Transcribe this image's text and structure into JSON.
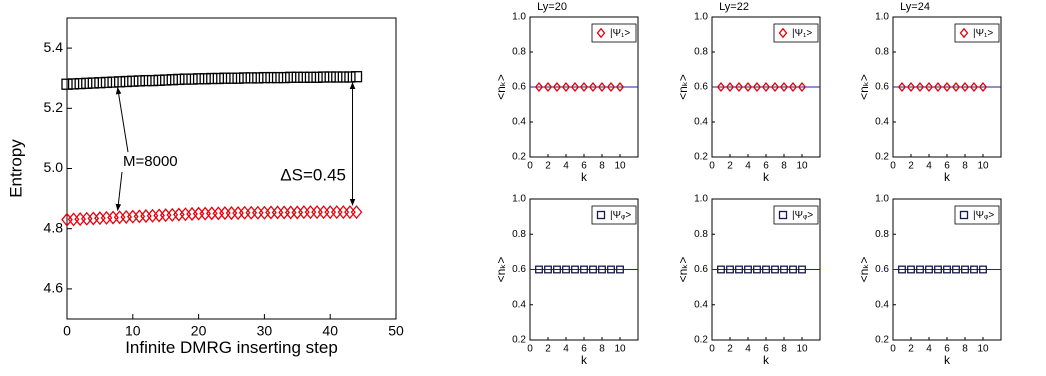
{
  "chart_data": [
    {
      "type": "scatter",
      "xlabel": "Infinite DMRG inserting step",
      "ylabel": "Entropy",
      "xlim": [
        0,
        50
      ],
      "xticks": [
        0,
        10,
        20,
        30,
        40,
        50
      ],
      "ylim": [
        4.5,
        5.5
      ],
      "yticks": [
        4.6,
        4.8,
        {
          "value": 5,
          "label": "5.0"
        },
        5.2,
        5.4
      ],
      "x": [
        0,
        1,
        2,
        3,
        4,
        5,
        6,
        7,
        8,
        9,
        10,
        11,
        12,
        13,
        14,
        15,
        16,
        17,
        18,
        19,
        20,
        21,
        22,
        23,
        24,
        25,
        26,
        27,
        28,
        29,
        30,
        31,
        32,
        33,
        34,
        35,
        36,
        37,
        38,
        39,
        40,
        41,
        42,
        43,
        44
      ],
      "series": [
        {
          "marker": "square",
          "color": "#000000",
          "values": [
            5.28,
            5.281,
            5.282,
            5.283,
            5.284,
            5.285,
            5.286,
            5.287,
            5.288,
            5.289,
            5.29,
            5.291,
            5.292,
            5.292,
            5.293,
            5.294,
            5.295,
            5.296,
            5.297,
            5.297,
            5.298,
            5.298,
            5.299,
            5.299,
            5.3,
            5.3,
            5.3,
            5.301,
            5.301,
            5.301,
            5.302,
            5.302,
            5.302,
            5.302,
            5.303,
            5.303,
            5.303,
            5.303,
            5.303,
            5.304,
            5.304,
            5.304,
            5.304,
            5.304,
            5.305
          ]
        },
        {
          "marker": "diamond",
          "color": "#e8000b",
          "values": [
            4.83,
            4.831,
            4.832,
            4.833,
            4.834,
            4.835,
            4.836,
            4.837,
            4.838,
            4.839,
            4.84,
            4.841,
            4.842,
            4.843,
            4.844,
            4.845,
            4.846,
            4.847,
            4.848,
            4.849,
            4.85,
            4.85,
            4.851,
            4.851,
            4.852,
            4.852,
            4.852,
            4.853,
            4.853,
            4.853,
            4.853,
            4.854,
            4.854,
            4.854,
            4.854,
            4.854,
            4.855,
            4.855,
            4.855,
            4.855,
            4.855,
            4.855,
            4.855,
            4.855,
            4.855
          ]
        }
      ],
      "annotations": [
        "M=8000",
        "ΔS=0.45"
      ]
    },
    {
      "type": "scatter",
      "title": "Ly=20",
      "xlabel": "k",
      "ylabel": "<nₖ>",
      "xlim": [
        0,
        12
      ],
      "xticks": [
        0,
        2,
        4,
        6,
        8,
        10
      ],
      "ylim": [
        0.2,
        1.0
      ],
      "yticks": [
        0.2,
        0.4,
        0.6,
        0.8,
        {
          "value": 1,
          "label": "1.0"
        }
      ],
      "reference_line": 0.6,
      "reference_color": "#1f1fa0",
      "x": [
        1,
        2,
        3,
        4,
        5,
        6,
        7,
        8,
        9,
        10
      ],
      "series": [
        {
          "name": "|Ψ₁>",
          "marker": "diamond",
          "color": "#e8000b",
          "values": [
            0.6,
            0.6,
            0.6,
            0.6,
            0.6,
            0.6,
            0.6,
            0.6,
            0.6,
            0.6
          ]
        }
      ]
    },
    {
      "type": "scatter",
      "title": "Ly=22",
      "xlabel": "k",
      "ylabel": "<nₖ>",
      "xlim": [
        0,
        12
      ],
      "xticks": [
        0,
        2,
        4,
        6,
        8,
        10
      ],
      "ylim": [
        0.2,
        1.0
      ],
      "yticks": [
        0.2,
        0.4,
        0.6,
        0.8,
        {
          "value": 1,
          "label": "1.0"
        }
      ],
      "reference_line": 0.6,
      "reference_color": "#1f1fa0",
      "x": [
        1,
        2,
        3,
        4,
        5,
        6,
        7,
        8,
        9,
        10
      ],
      "series": [
        {
          "name": "|Ψ₁>",
          "marker": "diamond",
          "color": "#e8000b",
          "values": [
            0.6,
            0.6,
            0.6,
            0.6,
            0.6,
            0.6,
            0.6,
            0.6,
            0.6,
            0.6
          ]
        }
      ]
    },
    {
      "type": "scatter",
      "title": "Ly=24",
      "xlabel": "k",
      "ylabel": "<nₖ>",
      "xlim": [
        0,
        12
      ],
      "xticks": [
        0,
        2,
        4,
        6,
        8,
        10
      ],
      "ylim": [
        0.2,
        1.0
      ],
      "yticks": [
        0.2,
        0.4,
        0.6,
        0.8,
        {
          "value": 1,
          "label": "1.0"
        }
      ],
      "reference_line": 0.6,
      "reference_color": "#1f1fa0",
      "x": [
        1,
        2,
        3,
        4,
        5,
        6,
        7,
        8,
        9,
        10
      ],
      "series": [
        {
          "name": "|Ψ₁>",
          "marker": "diamond",
          "color": "#e8000b",
          "values": [
            0.6,
            0.6,
            0.6,
            0.6,
            0.6,
            0.6,
            0.6,
            0.6,
            0.6,
            0.6
          ]
        }
      ]
    },
    {
      "type": "scatter",
      "xlabel": "k",
      "ylabel": "<nₖ>",
      "xlim": [
        0,
        12
      ],
      "xticks": [
        0,
        2,
        4,
        6,
        8,
        10
      ],
      "ylim": [
        0.2,
        1.0
      ],
      "yticks": [
        0.2,
        0.4,
        0.6,
        0.8,
        {
          "value": 1,
          "label": "1.0"
        }
      ],
      "reference_line": 0.6,
      "reference_color": "#1f1fa0",
      "x": [
        1,
        2,
        3,
        4,
        5,
        6,
        7,
        8,
        9,
        10
      ],
      "series": [
        {
          "name": "|Ψᵩ>",
          "marker": "square",
          "color": "#1a1a50",
          "values": [
            0.6,
            0.6,
            0.6,
            0.6,
            0.6,
            0.6,
            0.6,
            0.6,
            0.6,
            0.6
          ]
        }
      ]
    },
    {
      "type": "scatter",
      "xlabel": "k",
      "ylabel": "<nₖ>",
      "xlim": [
        0,
        12
      ],
      "xticks": [
        0,
        2,
        4,
        6,
        8,
        10
      ],
      "ylim": [
        0.2,
        1.0
      ],
      "yticks": [
        0.2,
        0.4,
        0.6,
        0.8,
        {
          "value": 1,
          "label": "1.0"
        }
      ],
      "reference_line": 0.6,
      "reference_color": "#1f1fa0",
      "x": [
        1,
        2,
        3,
        4,
        5,
        6,
        7,
        8,
        9,
        10
      ],
      "series": [
        {
          "name": "|Ψᵩ>",
          "marker": "square",
          "color": "#1a1a50",
          "values": [
            0.6,
            0.6,
            0.6,
            0.6,
            0.6,
            0.6,
            0.6,
            0.6,
            0.6,
            0.6
          ]
        }
      ]
    },
    {
      "type": "scatter",
      "xlabel": "k",
      "ylabel": "<nₖ>",
      "xlim": [
        0,
        12
      ],
      "xticks": [
        0,
        2,
        4,
        6,
        8,
        10
      ],
      "ylim": [
        0.2,
        1.0
      ],
      "yticks": [
        0.2,
        0.4,
        0.6,
        0.8,
        {
          "value": 1,
          "label": "1.0"
        }
      ],
      "reference_line": 0.6,
      "reference_color": "#1f1fa0",
      "x": [
        1,
        2,
        3,
        4,
        5,
        6,
        7,
        8,
        9,
        10
      ],
      "series": [
        {
          "name": "|Ψᵩ>",
          "marker": "square",
          "color": "#1a1a50",
          "values": [
            0.6,
            0.6,
            0.6,
            0.6,
            0.6,
            0.6,
            0.6,
            0.6,
            0.6,
            0.6
          ]
        }
      ]
    }
  ]
}
